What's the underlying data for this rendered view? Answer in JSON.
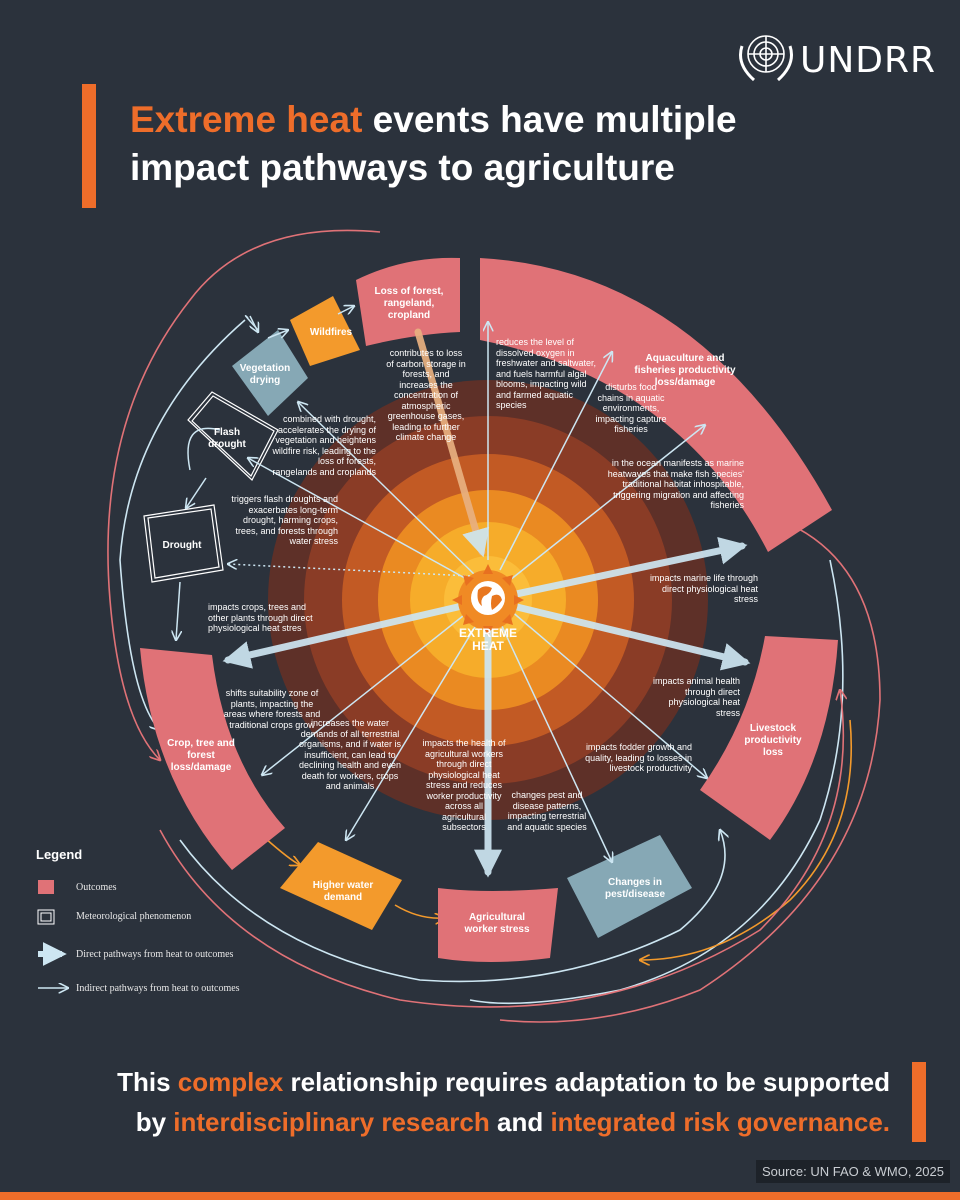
{
  "logo": {
    "text": "UNDRR"
  },
  "title": {
    "highlight": "Extreme heat",
    "rest_line1": " events have multiple",
    "line2": "impact pathways to agriculture"
  },
  "center": {
    "label_line1": "EXTREME",
    "label_line2": "HEAT"
  },
  "nodes": {
    "loss_forest": "Loss of forest, rangeland, cropland",
    "wildfires": "Wildfires",
    "vegetation_drying": "Vegetation drying",
    "flash_drought": "Flash drought",
    "drought": "Drought",
    "aquaculture": "Aquaculture and fisheries productivity loss/damage",
    "livestock": "Livestock productivity loss",
    "pest_disease": "Changes in pest/disease",
    "agri_worker": "Agricultural worker stress",
    "water_demand": "Higher water demand",
    "crop_tree": "Crop, tree and forest loss/damage"
  },
  "pathway_texts": {
    "carbon": "contributes to loss of carbon storage in forests, and increases the concentration of atmospheric greenhouse gases, leading to further climate change",
    "oxygen": "reduces the level of dissolved oxygen in freshwater and saltwater, and fuels harmful algal blooms, impacting wild and farmed aquatic species",
    "food_chains": "disturbs food chains in aquatic environments, impacting capture fisheries",
    "marine_heatwaves": "in the ocean manifests as marine heatwaves that make fish species' traditional habitat inhospitable, triggering migration and affecting fisheries",
    "marine_life": "impacts marine life through direct physiological heat stress",
    "animal_health": "impacts animal health through direct physiological heat stress",
    "fodder": "impacts fodder growth and quality, leading to losses in livestock productivity",
    "pest_patterns": "changes pest and disease patterns, impacting terrestrial and aquatic species",
    "workers": "impacts the health of agricultural workers through direct physiological heat stress and reduces worker productivity across all agricultural subsectors",
    "water_demands": "increases the water demands of all terrestrial organisms, and if water is insufficient, can lead to declining health and even death for workers, crops and animals",
    "suitability": "shifts suitability zone of plants, impacting the areas where forests and traditional crops grow",
    "crops_direct": "impacts crops, trees and other plants through direct physiological heat stres",
    "flash_droughts": "triggers flash droughts and exacerbates long-term drought, harming crops, trees, and forests through water stress",
    "wildfire_risk": "combined with drought, accelerates the drying of vegetation and heightens wildfire risk, leading to the loss of forests, rangelands and croplands"
  },
  "legend": {
    "title": "Legend",
    "outcomes": "Outcomes",
    "meteorological": "Meteorological phenomenon",
    "direct": "Direct pathways from heat to outcomes",
    "indirect": "Indirect pathways from heat to outcomes"
  },
  "footer": {
    "l1_a": "This ",
    "l1_hl": "complex",
    "l1_b": " relationship requires adaptation to be supported",
    "l2_a": "by ",
    "l2_hl1": "interdisciplinary research",
    "l2_b": " and ",
    "l2_hl2": "integrated risk governance."
  },
  "source": "Source: UN FAO & WMO, 2025",
  "colors": {
    "background": "#2b323c",
    "accent": "#ee6d2a",
    "outcome": "#e07277",
    "phenomenon": "#f39a2c",
    "pest_box": "#86a8b5",
    "arrow": "#cde6f2"
  }
}
